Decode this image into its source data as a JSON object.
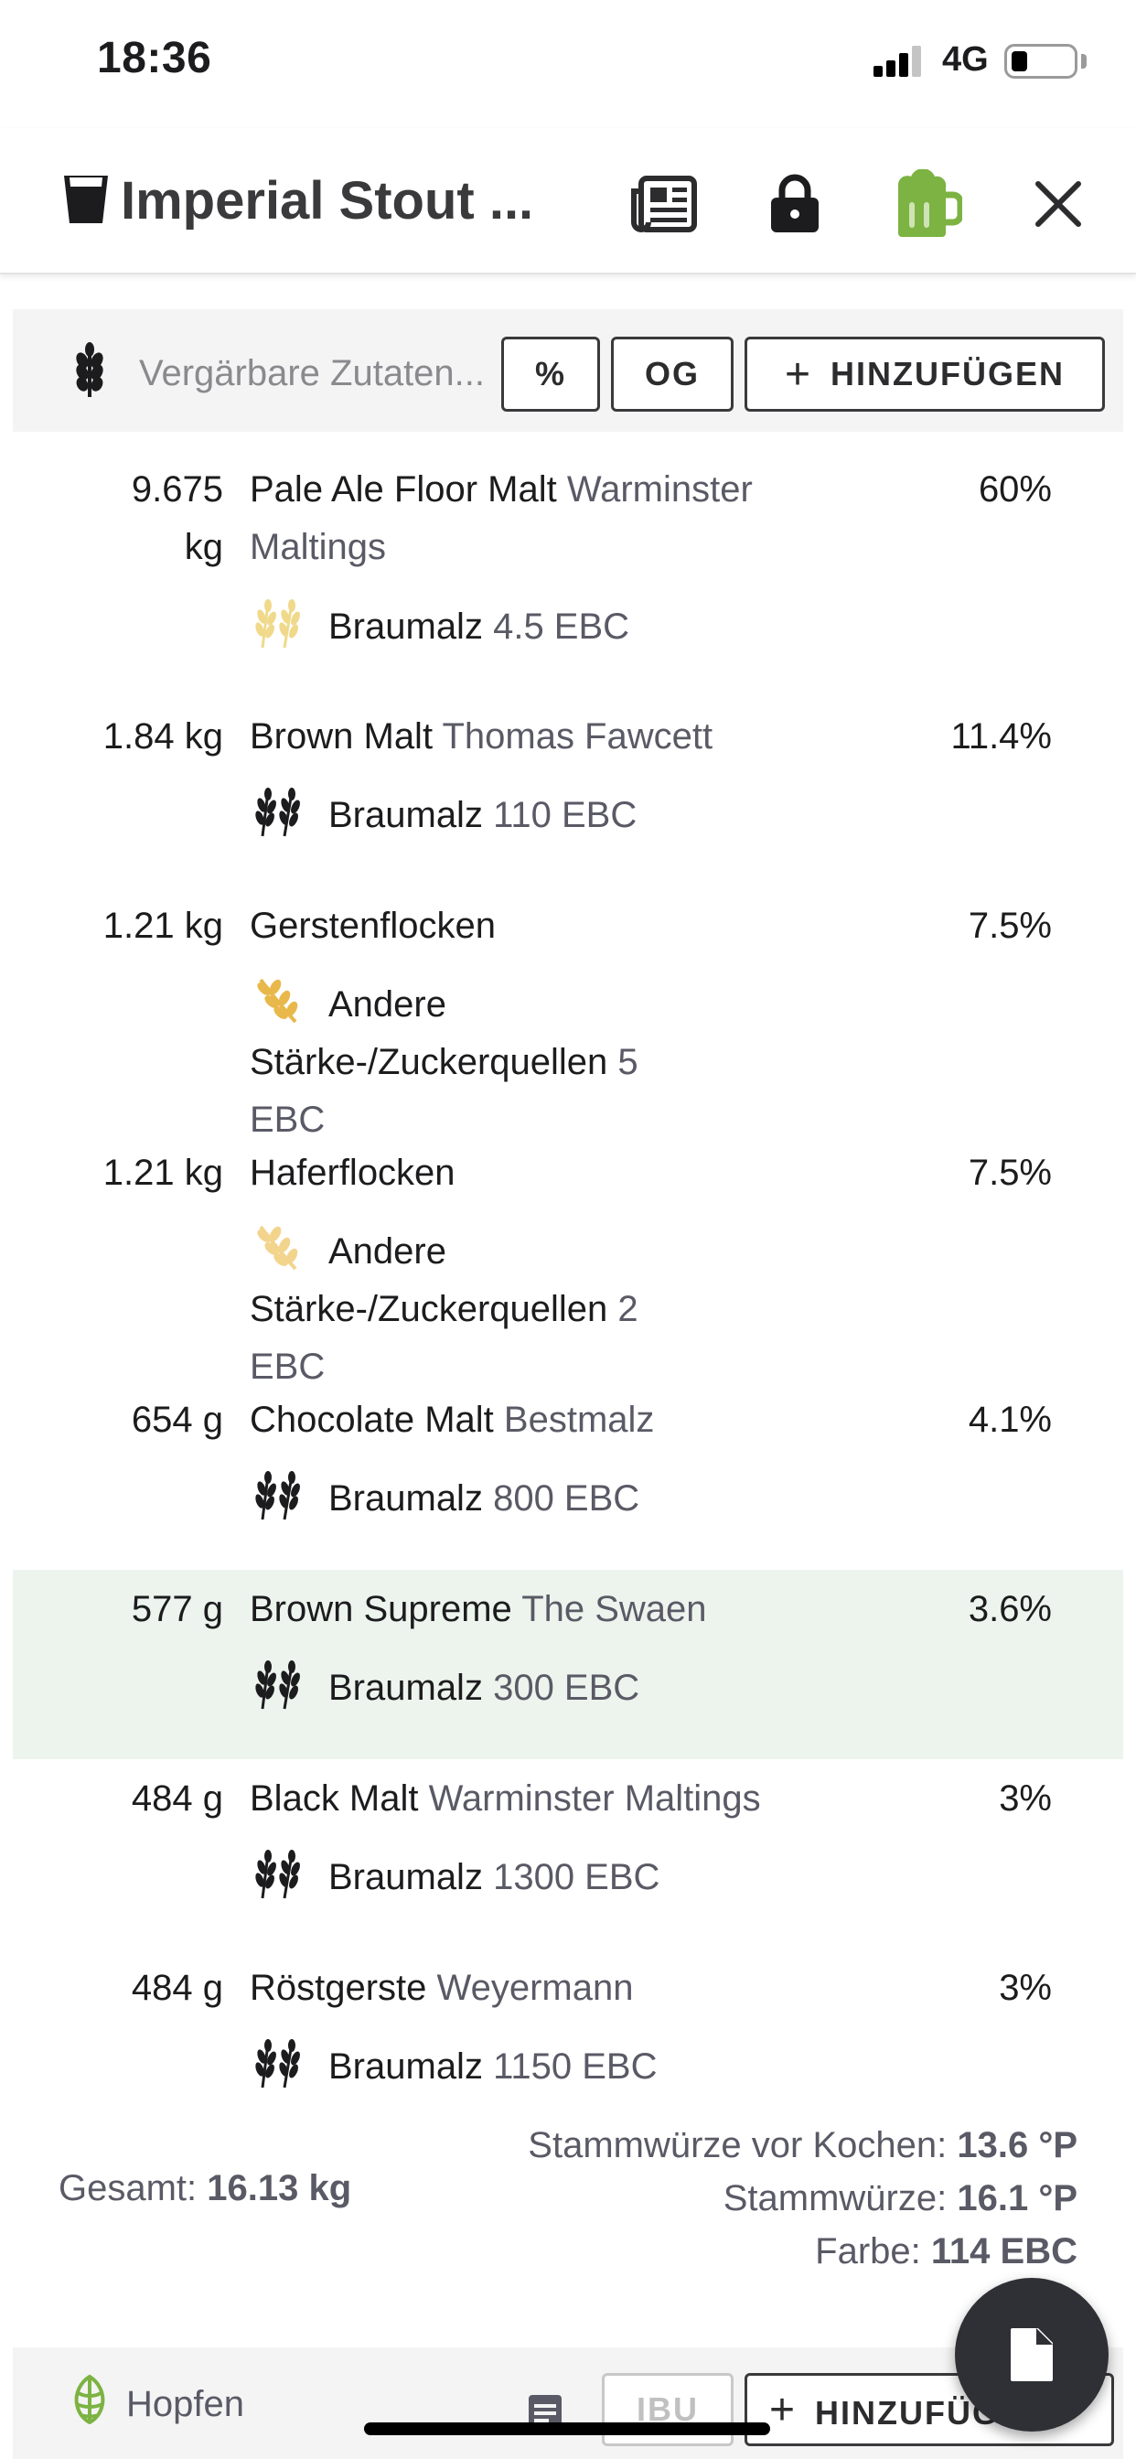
{
  "status_bar": {
    "time": "18:36",
    "network": "4G"
  },
  "app_bar": {
    "title": "Imperial Stout ..."
  },
  "fermentables_toolbar": {
    "search_placeholder": "Vergärbare Zutaten...",
    "percent_label": "%",
    "og_label": "OG",
    "add_label": "HINZUFÜGEN"
  },
  "fermentables": [
    {
      "amount": "9.675 kg",
      "name": "Pale Ale Floor Malt",
      "supplier": "Warminster Maltings",
      "type": "Braumalz",
      "color": "4.5 EBC",
      "percent": "60%",
      "icon": "wheat-pale-icon",
      "icon_color": "#f0d98a"
    },
    {
      "amount": "1.84 kg",
      "name": "Brown Malt",
      "supplier": "Thomas Fawcett",
      "type": "Braumalz",
      "color": "110 EBC",
      "percent": "11.4%",
      "icon": "wheat-dark-icon",
      "icon_color": "#1c1c1e"
    },
    {
      "amount": "1.21 kg",
      "name": "Gerstenflocken",
      "supplier": "",
      "type": "Andere Stärke-/Zuckerquellen",
      "color": "5 EBC",
      "percent": "7.5%",
      "icon": "grain-sprig-icon",
      "icon_color": "#e8b84a"
    },
    {
      "amount": "1.21 kg",
      "name": "Haferflocken",
      "supplier": "",
      "type": "Andere Stärke-/Zuckerquellen",
      "color": "2 EBC",
      "percent": "7.5%",
      "icon": "grain-sprig-icon",
      "icon_color": "#f2d48c"
    },
    {
      "amount": "654 g",
      "name": "Chocolate Malt",
      "supplier": "Bestmalz",
      "type": "Braumalz",
      "color": "800 EBC",
      "percent": "4.1%",
      "icon": "wheat-dark-icon",
      "icon_color": "#1c1c1e"
    },
    {
      "amount": "577 g",
      "name": "Brown Supreme",
      "supplier": "The Swaen",
      "type": "Braumalz",
      "color": "300 EBC",
      "percent": "3.6%",
      "icon": "wheat-dark-icon",
      "icon_color": "#1c1c1e"
    },
    {
      "amount": "484 g",
      "name": "Black Malt",
      "supplier": "Warminster Maltings",
      "type": "Braumalz",
      "color": "1300 EBC",
      "percent": "3%",
      "icon": "wheat-dark-icon",
      "icon_color": "#1c1c1e"
    },
    {
      "amount": "484 g",
      "name": "Röstgerste",
      "supplier": "Weyermann",
      "type": "Braumalz",
      "color": "1150 EBC",
      "percent": "3%",
      "icon": "wheat-dark-icon",
      "icon_color": "#1c1c1e"
    }
  ],
  "summary": {
    "total_label": "Gesamt:",
    "total_value": "16.13 kg",
    "pre_boil_label": "Stammwürze vor Kochen:",
    "pre_boil_value": "13.6 °P",
    "og_label": "Stammwürze:",
    "og_value": "16.1 °P",
    "color_label": "Farbe:",
    "color_value": "114 EBC"
  },
  "hops_toolbar": {
    "label": "Hopfen",
    "ibu_label": "IBU",
    "add_label": "HINZUFÜGEN"
  },
  "colors": {
    "highlight_row": "#edf4ed",
    "beer_icon": "#7cb342",
    "fab": "#2e3035"
  }
}
